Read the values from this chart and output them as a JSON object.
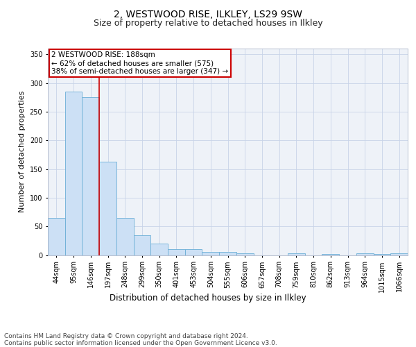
{
  "title1": "2, WESTWOOD RISE, ILKLEY, LS29 9SW",
  "title2": "Size of property relative to detached houses in Ilkley",
  "xlabel": "Distribution of detached houses by size in Ilkley",
  "ylabel": "Number of detached properties",
  "categories": [
    "44sqm",
    "95sqm",
    "146sqm",
    "197sqm",
    "248sqm",
    "299sqm",
    "350sqm",
    "401sqm",
    "453sqm",
    "504sqm",
    "555sqm",
    "606sqm",
    "657sqm",
    "708sqm",
    "759sqm",
    "810sqm",
    "862sqm",
    "913sqm",
    "964sqm",
    "1015sqm",
    "1066sqm"
  ],
  "values": [
    65,
    285,
    275,
    163,
    65,
    35,
    20,
    10,
    10,
    5,
    5,
    3,
    0,
    0,
    3,
    0,
    2,
    0,
    3,
    2,
    3
  ],
  "bar_color": "#cce0f5",
  "bar_edge_color": "#6aaed6",
  "vline_color": "#cc0000",
  "annotation_text": "2 WESTWOOD RISE: 188sqm\n← 62% of detached houses are smaller (575)\n38% of semi-detached houses are larger (347) →",
  "annotation_box_color": "#ffffff",
  "annotation_box_edge": "#cc0000",
  "footer": "Contains HM Land Registry data © Crown copyright and database right 2024.\nContains public sector information licensed under the Open Government Licence v3.0.",
  "ylim": [
    0,
    360
  ],
  "yticks": [
    0,
    50,
    100,
    150,
    200,
    250,
    300,
    350
  ],
  "plot_bg": "#eef2f8",
  "title1_fontsize": 10,
  "title2_fontsize": 9,
  "xlabel_fontsize": 8.5,
  "ylabel_fontsize": 8,
  "tick_fontsize": 7,
  "footer_fontsize": 6.5,
  "annot_fontsize": 7.5
}
